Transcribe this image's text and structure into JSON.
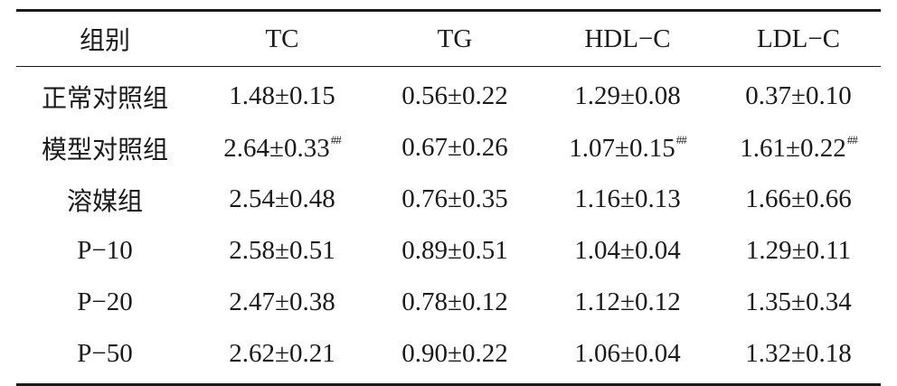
{
  "table": {
    "headers": [
      "组别",
      "TC",
      "TG",
      "HDL−C",
      "LDL−C"
    ],
    "rows": [
      {
        "group": "正常对照组",
        "cells": [
          {
            "value": "1.48±0.15",
            "mark": ""
          },
          {
            "value": "0.56±0.22",
            "mark": ""
          },
          {
            "value": "1.29±0.08",
            "mark": ""
          },
          {
            "value": "0.37±0.10",
            "mark": ""
          }
        ]
      },
      {
        "group": "模型对照组",
        "cells": [
          {
            "value": "2.64±0.33",
            "mark": "##"
          },
          {
            "value": "0.67±0.26",
            "mark": ""
          },
          {
            "value": "1.07±0.15",
            "mark": "##"
          },
          {
            "value": "1.61±0.22",
            "mark": "##"
          }
        ]
      },
      {
        "group": "溶媒组",
        "cells": [
          {
            "value": "2.54±0.48",
            "mark": ""
          },
          {
            "value": "0.76±0.35",
            "mark": ""
          },
          {
            "value": "1.16±0.13",
            "mark": ""
          },
          {
            "value": "1.66±0.66",
            "mark": ""
          }
        ]
      },
      {
        "group": "P−10",
        "cells": [
          {
            "value": "2.58±0.51",
            "mark": ""
          },
          {
            "value": "0.89±0.51",
            "mark": ""
          },
          {
            "value": "1.04±0.04",
            "mark": ""
          },
          {
            "value": "1.29±0.11",
            "mark": ""
          }
        ]
      },
      {
        "group": "P−20",
        "cells": [
          {
            "value": "2.47±0.38",
            "mark": ""
          },
          {
            "value": "0.78±0.12",
            "mark": ""
          },
          {
            "value": "1.12±0.12",
            "mark": ""
          },
          {
            "value": "1.35±0.34",
            "mark": ""
          }
        ]
      },
      {
        "group": "P−50",
        "cells": [
          {
            "value": "2.62±0.21",
            "mark": ""
          },
          {
            "value": "0.90±0.22",
            "mark": ""
          },
          {
            "value": "1.06±0.04",
            "mark": ""
          },
          {
            "value": "1.32±0.18",
            "mark": ""
          }
        ]
      }
    ]
  }
}
